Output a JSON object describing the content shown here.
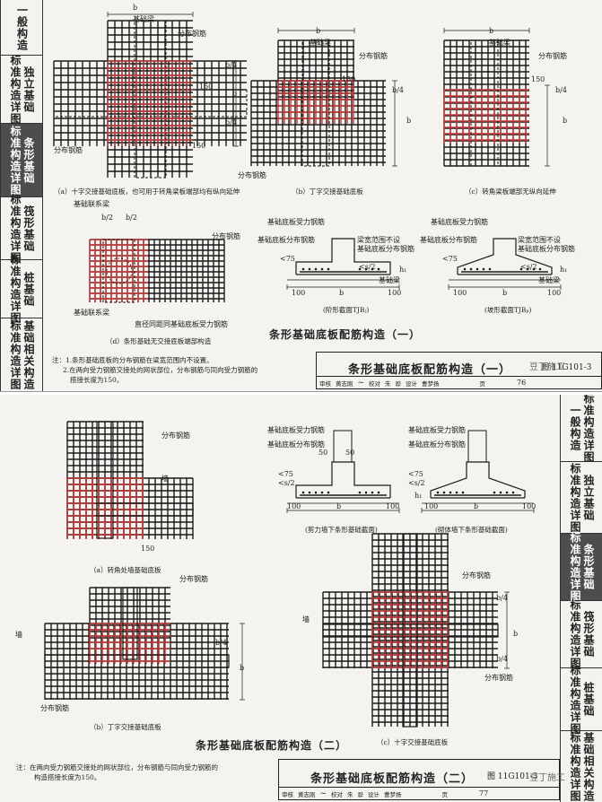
{
  "page1": {
    "sidebar": [
      {
        "label": "一般构造"
      },
      {
        "label": "标准构造详图",
        "prefix": "独立基础"
      },
      {
        "label": "标准构造详图",
        "prefix": "条形基础",
        "active": true
      },
      {
        "label": "标准构造详图",
        "prefix": "筏形基础"
      },
      {
        "label": "标准构造详图",
        "prefix": "桩基础"
      },
      {
        "label": "标准构造详图",
        "prefix": "基础相关构造"
      }
    ],
    "labels": {
      "b": "b",
      "b4": "b/4",
      "b2": "b/2",
      "jcl": "基础梁",
      "fbjj": "分布钢筋",
      "n150": "150",
      "jclxl": "基础联系梁",
      "zjtjb": "直径同距同基础底板受力钢筋",
      "dbsl": "基础底板受力钢筋",
      "dbfb": "基础底板分布钢筋",
      "lbfw": "梁宽范围不设",
      "lbfw2": "基础底板分布钢筋",
      "lt75": "<75",
      "s2": "<s/2",
      "h1": "h₁",
      "n100": "100",
      "dzjm": "(阶形截面TJBⱼ)",
      "pzjm": "(坡形截面TJBₚ)"
    },
    "captions": {
      "a": "（a）十字交接基础底板，也可用于转角梁板端部均有纵向延伸",
      "b": "（b）丁字交接基础底板",
      "c": "（c）转角梁板端部无纵向延伸",
      "d": "（d）条形基础无交接底板端部构造"
    },
    "section_title": "条形基础底板配筋构造（一）",
    "notes": [
      "注：1.条形基础底板的分布钢筋在梁宽范围内不设置。",
      "2.在两向受力钢筋交接处的网状部位，分布钢筋与同向受力钢筋的",
      "搭接长度为150。"
    ],
    "title_block": {
      "title": "条形基础底板配筋构造（一）",
      "atlas_label": "图",
      "atlas": "11G101-3",
      "row": [
        "审核",
        "黄志刚",
        "校对",
        "朱",
        "骅",
        "设计",
        "曹梦扬",
        "页"
      ],
      "page": "76"
    },
    "watermark": "豆丁施工"
  },
  "page2": {
    "sidebar": [
      {
        "label": "一般构造",
        "prefix": "标准构造详图"
      },
      {
        "label": "标准构造详图",
        "prefix": "独立基础"
      },
      {
        "label": "标准构造详图",
        "prefix": "条形基础",
        "active": true
      },
      {
        "label": "标准构造详图",
        "prefix": "筏形基础"
      },
      {
        "label": "标准构造详图",
        "prefix": "桩基础"
      },
      {
        "label": "标准构造详图",
        "prefix": "基础相关构造"
      }
    ],
    "labels": {
      "fbjj": "分布钢筋",
      "qiang": "墙",
      "n150": "150",
      "dbsl": "基础底板受力钢筋",
      "dbfb": "基础底板分布钢筋",
      "n50": "50",
      "lt75": "<75",
      "s2": "<s/2",
      "h1": "h₁",
      "n100": "100",
      "b": "b",
      "b4": "b/4",
      "jlq": "(剪力墙下条形基础截面)",
      "qtq": "(砌体墙下条形基础截面)"
    },
    "captions": {
      "a": "（a）转角处墙基础底板",
      "b": "（b）丁字交接基础底板",
      "c": "（c）十字交接基础底板"
    },
    "section_title": "条形基础底板配筋构造（二）",
    "notes": [
      "注：在两向受力钢筋交接处的网状部位，分布钢筋与同向受力钢筋的",
      "构造搭接长度为150。"
    ],
    "title_block": {
      "title": "条形基础底板配筋构造（二）",
      "atlas_label": "图",
      "atlas": "11G101-3",
      "row": [
        "审核",
        "黄志刚",
        "校对",
        "朱",
        "骅",
        "设计",
        "曹梦扬",
        "页"
      ],
      "page": "77"
    },
    "watermark": "豆丁施工"
  },
  "colors": {
    "rebar_black": "#1a1a1a",
    "rebar_red": "#c23b3b",
    "paper": "#f4f3ef",
    "sidebar_active": "#4d4d4d"
  }
}
